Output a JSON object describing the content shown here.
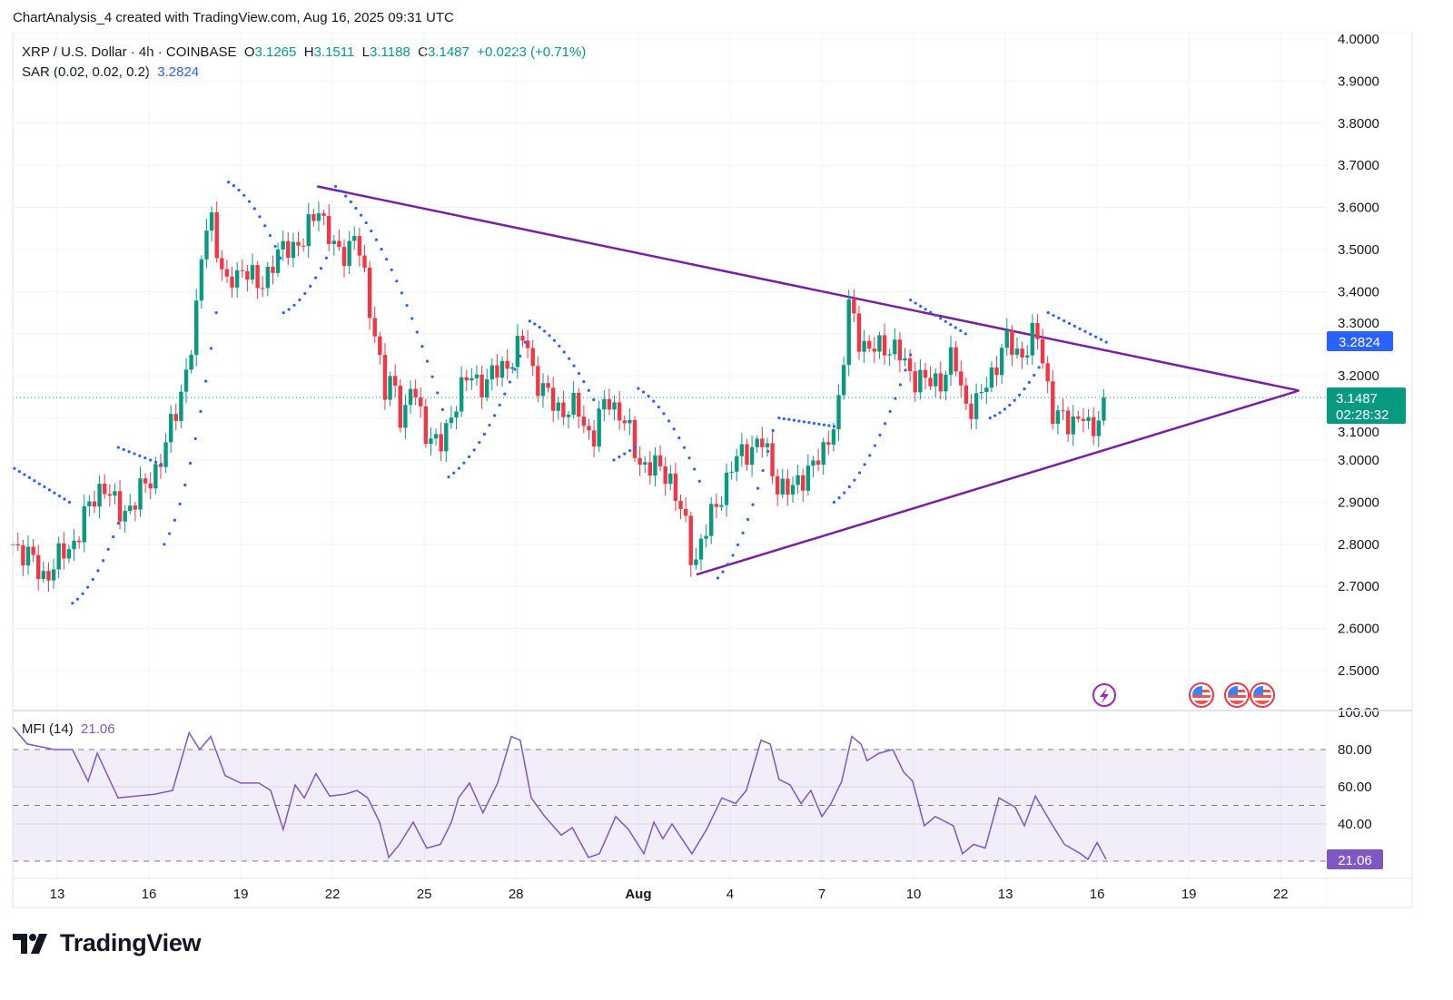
{
  "caption": "ChartAnalysis_4 created with TradingView.com, Aug 16, 2025 09:31 UTC",
  "legend": {
    "symbol": "XRP / U.S. Dollar · 4h · COINBASE",
    "o_label": "O",
    "o": "3.1265",
    "h_label": "H",
    "h": "3.1511",
    "l_label": "L",
    "l": "3.1188",
    "c_label": "C",
    "c": "3.1487",
    "change": "+0.0223 (+0.71%)",
    "sar_label": "SAR (0.02, 0.02, 0.2)",
    "sar_value": "3.2824"
  },
  "mfi_legend": {
    "label": "MFI (14)",
    "value": "21.06"
  },
  "price_tags": {
    "sar": "3.2824",
    "last": "3.1487",
    "countdown": "02:28:32",
    "mfi": "21.06"
  },
  "colors": {
    "up": "#089981",
    "down": "#f23645",
    "sar": "#2962ff",
    "trend": "#7b1fa2",
    "mfi": "#7e57c2",
    "grid": "#f0f3fa"
  },
  "logo": {
    "text": "TradingView"
  },
  "icons": [
    "lightning-event-icon",
    "us-flag-event-icon",
    "us-flag-event-icon",
    "us-flag-event-icon"
  ],
  "chart_data": {
    "type": "candlestick",
    "title": "XRP / U.S. Dollar · 4h · COINBASE",
    "x_unit": "day (July day number; Aug 1 = 32)",
    "x_ticks": [
      {
        "d": 13,
        "label": "13"
      },
      {
        "d": 16,
        "label": "16"
      },
      {
        "d": 19,
        "label": "19"
      },
      {
        "d": 22,
        "label": "22"
      },
      {
        "d": 25,
        "label": "25"
      },
      {
        "d": 28,
        "label": "28"
      },
      {
        "d": 32,
        "label": "Aug"
      },
      {
        "d": 35,
        "label": "4"
      },
      {
        "d": 38,
        "label": "7"
      },
      {
        "d": 41,
        "label": "10"
      },
      {
        "d": 44,
        "label": "13"
      },
      {
        "d": 47,
        "label": "16"
      },
      {
        "d": 50,
        "label": "19"
      },
      {
        "d": 53,
        "label": "22"
      }
    ],
    "price_axis": {
      "ylim": [
        2.45,
        4.02
      ],
      "ticks": [
        "4.0000",
        "3.9000",
        "3.8000",
        "3.7000",
        "3.6000",
        "3.5000",
        "3.4000",
        "3.3000",
        "3.2000",
        "3.1000",
        "3.0000",
        "2.9000",
        "2.8000",
        "2.7000",
        "2.6000",
        "2.5000"
      ]
    },
    "mfi_axis": {
      "ylim": [
        15,
        100
      ],
      "ticks": [
        "100.00",
        "80.00",
        "60.00",
        "40.00"
      ],
      "bands": [
        80,
        50,
        20
      ]
    },
    "close_path": [
      [
        11.55,
        2.8
      ],
      [
        12,
        2.78
      ],
      [
        12.5,
        2.72
      ],
      [
        13,
        2.76
      ],
      [
        13.5,
        2.8
      ],
      [
        14,
        2.88
      ],
      [
        14.5,
        2.95
      ],
      [
        15,
        2.87
      ],
      [
        15.5,
        2.9
      ],
      [
        16,
        2.95
      ],
      [
        16.5,
        3.02
      ],
      [
        17,
        3.15
      ],
      [
        17.5,
        3.3
      ],
      [
        17.8,
        3.55
      ],
      [
        18,
        3.6
      ],
      [
        18.25,
        3.48
      ],
      [
        18.5,
        3.4
      ],
      [
        18.75,
        3.45
      ],
      [
        19,
        3.45
      ],
      [
        19.5,
        3.42
      ],
      [
        20,
        3.45
      ],
      [
        20.5,
        3.52
      ],
      [
        21,
        3.5
      ],
      [
        21.5,
        3.62
      ],
      [
        21.75,
        3.55
      ],
      [
        22,
        3.5
      ],
      [
        22.5,
        3.5
      ],
      [
        22.75,
        3.53
      ],
      [
        23,
        3.45
      ],
      [
        23.4,
        3.3
      ],
      [
        23.7,
        3.15
      ],
      [
        24,
        3.2
      ],
      [
        24.3,
        3.08
      ],
      [
        24.6,
        3.18
      ],
      [
        25,
        3.08
      ],
      [
        25.5,
        3.02
      ],
      [
        26,
        3.14
      ],
      [
        26.5,
        3.2
      ],
      [
        27,
        3.18
      ],
      [
        27.5,
        3.22
      ],
      [
        28,
        3.25
      ],
      [
        28.3,
        3.3
      ],
      [
        28.6,
        3.2
      ],
      [
        29,
        3.15
      ],
      [
        29.5,
        3.12
      ],
      [
        30,
        3.12
      ],
      [
        30.5,
        3.05
      ],
      [
        31,
        3.15
      ],
      [
        31.5,
        3.1
      ],
      [
        32,
        3.0
      ],
      [
        32.5,
        2.98
      ],
      [
        33,
        2.97
      ],
      [
        33.5,
        2.85
      ],
      [
        33.8,
        2.75
      ],
      [
        34,
        2.8
      ],
      [
        34.5,
        2.88
      ],
      [
        35,
        2.98
      ],
      [
        35.5,
        3.02
      ],
      [
        36,
        3.05
      ],
      [
        36.5,
        2.95
      ],
      [
        37,
        2.92
      ],
      [
        37.5,
        2.98
      ],
      [
        38,
        3.0
      ],
      [
        38.3,
        3.08
      ],
      [
        38.6,
        3.14
      ],
      [
        38.9,
        3.38
      ],
      [
        39.2,
        3.3
      ],
      [
        39.5,
        3.25
      ],
      [
        40,
        3.28
      ],
      [
        40.5,
        3.25
      ],
      [
        41,
        3.2
      ],
      [
        41.5,
        3.18
      ],
      [
        42,
        3.2
      ],
      [
        42.3,
        3.25
      ],
      [
        42.6,
        3.15
      ],
      [
        43,
        3.12
      ],
      [
        43.5,
        3.2
      ],
      [
        44,
        3.28
      ],
      [
        44.5,
        3.25
      ],
      [
        45,
        3.3
      ],
      [
        45.3,
        3.22
      ],
      [
        45.5,
        3.12
      ],
      [
        46,
        3.08
      ],
      [
        46.5,
        3.12
      ],
      [
        46.8,
        3.04
      ],
      [
        47,
        3.1
      ],
      [
        47.3,
        3.1487
      ]
    ],
    "last_price": 3.1487,
    "sar_value": 3.2824,
    "sar_segments": [
      [
        11.6,
        13.4,
        2.98,
        2.9
      ],
      [
        13.5,
        15.0,
        2.66,
        2.85
      ],
      [
        15.0,
        16.4,
        3.03,
        2.99
      ],
      [
        16.5,
        18.2,
        2.8,
        3.35
      ],
      [
        18.6,
        20.3,
        3.66,
        3.48
      ],
      [
        20.4,
        21.8,
        3.35,
        3.48
      ],
      [
        22.1,
        25.6,
        3.65,
        3.12
      ],
      [
        25.8,
        28.3,
        2.96,
        3.28
      ],
      [
        28.45,
        30.7,
        3.33,
        3.12
      ],
      [
        31.2,
        31.9,
        3.0,
        3.03
      ],
      [
        32.0,
        34.0,
        3.17,
        2.95
      ],
      [
        34.6,
        36.4,
        2.72,
        3.07
      ],
      [
        36.6,
        38.4,
        3.1,
        3.08
      ],
      [
        38.4,
        40.9,
        2.9,
        3.25
      ],
      [
        40.9,
        42.7,
        3.38,
        3.3
      ],
      [
        43.5,
        45.1,
        3.1,
        3.22
      ],
      [
        45.4,
        47.3,
        3.35,
        3.28
      ]
    ],
    "trendlines": [
      {
        "name": "upper",
        "from": [
          21.5,
          3.65
        ],
        "to": [
          53.6,
          3.165
        ]
      },
      {
        "name": "lower",
        "from": [
          33.9,
          2.728
        ],
        "to": [
          53.6,
          3.165
        ]
      }
    ],
    "mfi": [
      [
        11.55,
        92
      ],
      [
        12.02,
        83
      ],
      [
        12.91,
        80
      ],
      [
        13.5,
        80
      ],
      [
        14.01,
        63
      ],
      [
        14.31,
        78
      ],
      [
        14.99,
        54
      ],
      [
        15.58,
        55
      ],
      [
        16.18,
        56
      ],
      [
        16.77,
        58
      ],
      [
        17.31,
        89
      ],
      [
        17.66,
        80
      ],
      [
        18.02,
        87
      ],
      [
        18.49,
        66
      ],
      [
        19.0,
        62
      ],
      [
        19.59,
        62
      ],
      [
        19.98,
        58
      ],
      [
        20.39,
        37
      ],
      [
        20.78,
        61
      ],
      [
        21.08,
        54
      ],
      [
        21.46,
        67
      ],
      [
        21.91,
        55
      ],
      [
        22.41,
        56
      ],
      [
        22.8,
        58
      ],
      [
        23.15,
        54
      ],
      [
        23.54,
        41
      ],
      [
        23.84,
        22
      ],
      [
        24.19,
        29
      ],
      [
        24.64,
        41
      ],
      [
        25.08,
        27
      ],
      [
        25.53,
        29
      ],
      [
        25.89,
        41
      ],
      [
        26.12,
        54
      ],
      [
        26.48,
        62
      ],
      [
        26.92,
        46
      ],
      [
        27.4,
        62
      ],
      [
        27.85,
        87
      ],
      [
        28.14,
        85
      ],
      [
        28.5,
        54
      ],
      [
        28.94,
        44
      ],
      [
        29.48,
        34
      ],
      [
        29.84,
        38
      ],
      [
        30.37,
        22
      ],
      [
        30.73,
        24
      ],
      [
        31.26,
        44
      ],
      [
        31.68,
        37
      ],
      [
        32.18,
        24
      ],
      [
        32.51,
        41
      ],
      [
        32.8,
        32
      ],
      [
        33.1,
        40
      ],
      [
        33.75,
        24
      ],
      [
        34.23,
        37
      ],
      [
        34.73,
        54
      ],
      [
        35.18,
        51
      ],
      [
        35.53,
        58
      ],
      [
        36.01,
        85
      ],
      [
        36.31,
        83
      ],
      [
        36.6,
        64
      ],
      [
        36.96,
        61
      ],
      [
        37.32,
        51
      ],
      [
        37.64,
        58
      ],
      [
        38.0,
        44
      ],
      [
        38.3,
        51
      ],
      [
        38.65,
        63
      ],
      [
        38.98,
        87
      ],
      [
        39.28,
        83
      ],
      [
        39.48,
        74
      ],
      [
        39.87,
        78
      ],
      [
        40.32,
        80
      ],
      [
        40.67,
        68
      ],
      [
        40.97,
        63
      ],
      [
        41.35,
        39
      ],
      [
        41.71,
        44
      ],
      [
        42.3,
        39
      ],
      [
        42.6,
        24
      ],
      [
        42.96,
        29
      ],
      [
        43.34,
        27
      ],
      [
        43.79,
        54
      ],
      [
        44.32,
        49
      ],
      [
        44.62,
        39
      ],
      [
        44.98,
        55
      ],
      [
        45.48,
        41
      ],
      [
        45.93,
        29
      ],
      [
        46.46,
        24
      ],
      [
        46.7,
        21
      ],
      [
        47.0,
        30
      ],
      [
        47.29,
        21.06
      ]
    ]
  }
}
